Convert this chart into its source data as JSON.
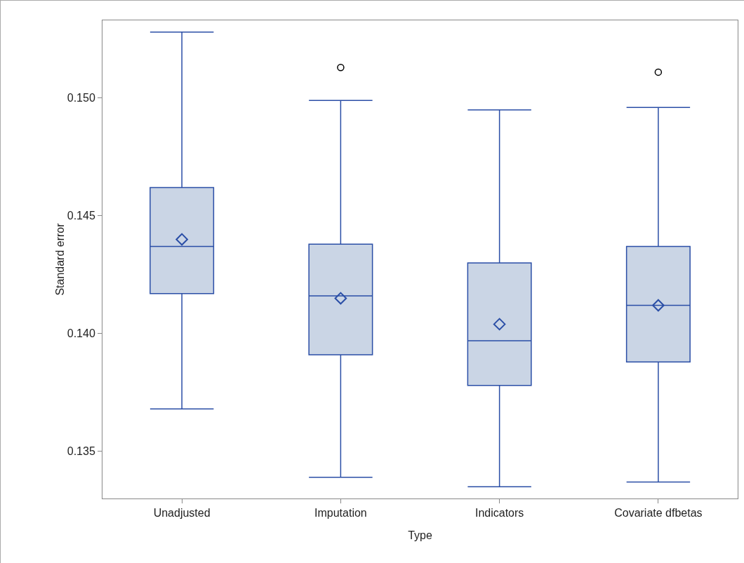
{
  "chart_data": {
    "type": "box",
    "xlabel": "Type",
    "ylabel": "Standard error",
    "categories": [
      "Unadjusted",
      "Imputation",
      "Indicators",
      "Covariate dfbetas"
    ],
    "series": [
      {
        "color": "#2a4ea6",
        "boxes": [
          {
            "low": 0.1368,
            "q1": 0.1417,
            "median": 0.1437,
            "q3": 0.1462,
            "high": 0.1528,
            "mean": 0.144
          },
          {
            "low": 0.1339,
            "q1": 0.1391,
            "median": 0.1416,
            "q3": 0.1438,
            "high": 0.1499,
            "mean": 0.1415,
            "outliers": [
              0.1513
            ]
          },
          {
            "low": 0.1335,
            "q1": 0.1378,
            "median": 0.1397,
            "q3": 0.143,
            "high": 0.1495,
            "mean": 0.1404
          },
          {
            "low": 0.1337,
            "q1": 0.1388,
            "median": 0.1412,
            "q3": 0.1437,
            "high": 0.1496,
            "mean": 0.1412,
            "outliers": [
              0.1511
            ]
          }
        ]
      }
    ],
    "ylim": [
      0.133,
      0.1533
    ],
    "yticks": [
      {
        "value": 0.135,
        "label": "0.135"
      },
      {
        "value": 0.14,
        "label": "0.140"
      },
      {
        "value": 0.145,
        "label": "0.145"
      },
      {
        "value": 0.15,
        "label": "0.150"
      }
    ],
    "grid": false,
    "marker": "diamond"
  }
}
